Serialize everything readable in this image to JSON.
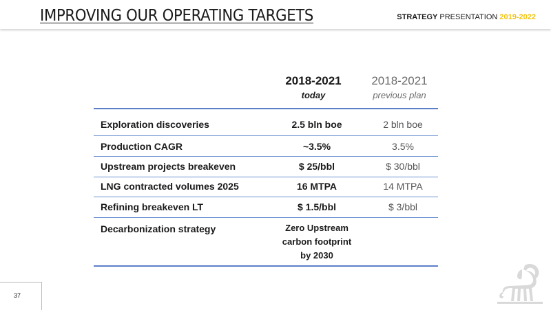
{
  "header": {
    "title": "IMPROVING OUR OPERATING TARGETS",
    "strap_bold": "STRATEGY",
    "strap_mid": " PRESENTATION ",
    "strap_years": "2019-2022",
    "years_color": "#f2c313"
  },
  "table": {
    "col_today": {
      "years": "2018-2021",
      "label": "today"
    },
    "col_prev": {
      "years": "2018-2021",
      "label": "previous plan"
    },
    "rows": [
      {
        "label": "Exploration discoveries",
        "today": "2.5 bln boe",
        "previous": "2 bln boe"
      },
      {
        "label": "Production CAGR",
        "today": "~3.5%",
        "previous": "3.5%"
      },
      {
        "label": "Upstream projects breakeven",
        "today": "$ 25/bbl",
        "previous": "$ 30/bbl"
      },
      {
        "label": "LNG contracted volumes 2025",
        "today": "16 MTPA",
        "previous": "14 MTPA"
      },
      {
        "label": "Refining breakeven LT",
        "today": "$ 1.5/bbl",
        "previous": "$ 3/bbl"
      },
      {
        "label": "Decarbonization strategy",
        "today_lines": [
          "Zero Upstream",
          "carbon footprint",
          "by 2030"
        ],
        "previous": ""
      }
    ],
    "rule_color": "#5a7fc6"
  },
  "footer": {
    "page_number": "37",
    "logo_icon": "six-legged-dog-logo-icon"
  }
}
